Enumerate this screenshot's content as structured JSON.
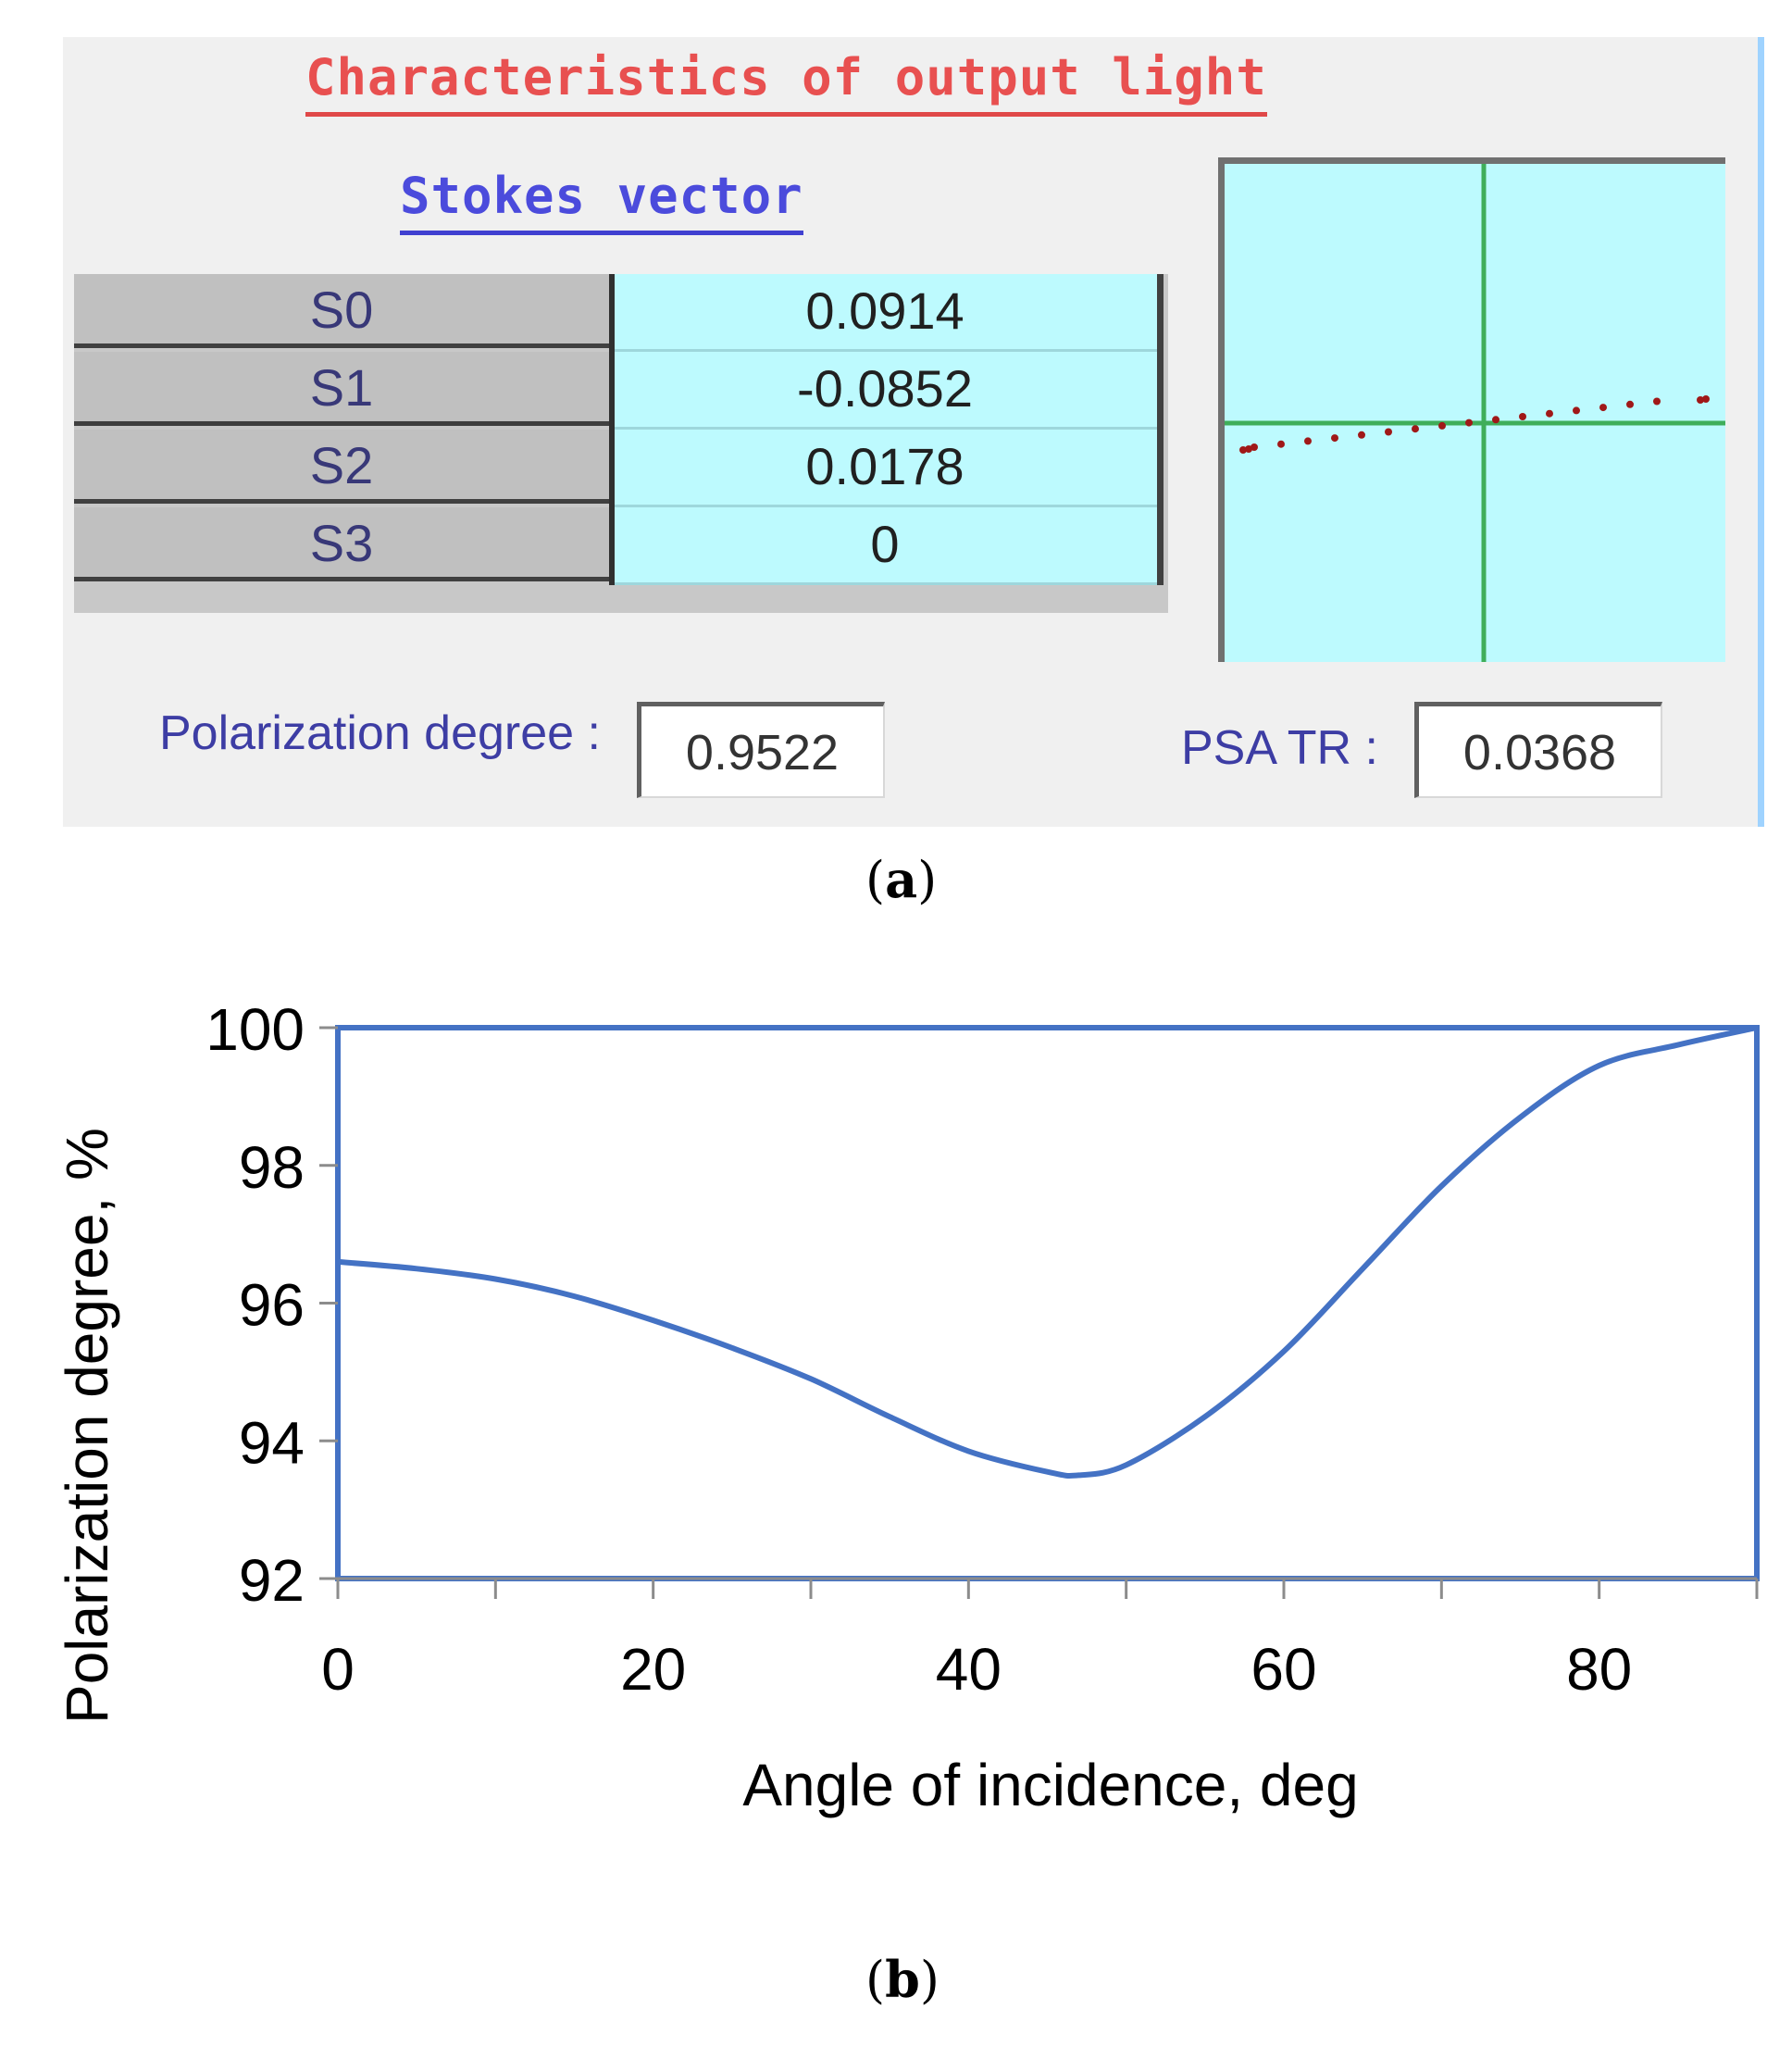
{
  "panel_a": {
    "title": "Characteristics of output light",
    "subtitle": "Stokes vector",
    "stokes_rows": [
      {
        "label": "S0",
        "value": "0.0914"
      },
      {
        "label": "S1",
        "value": "-0.0852"
      },
      {
        "label": "S2",
        "value": "0.0178"
      },
      {
        "label": "S3",
        "value": "0"
      }
    ],
    "polarization_label": "Polarization degree :",
    "polarization_value": "0.9522",
    "psa_label": "PSA TR :",
    "psa_value": "0.0368",
    "caption_letter": "a",
    "colors": {
      "scope_axis": "#3fae5a",
      "scope_points": "#a01818",
      "scope_bg": "#bdfafe"
    }
  },
  "chart_data": {
    "type": "line",
    "title": "",
    "xlabel": "Angle of incidence, deg",
    "ylabel": "Polarization degree, %",
    "xlim": [
      0,
      90
    ],
    "ylim": [
      92,
      100
    ],
    "x_ticks": [
      "0",
      "20",
      "40",
      "60",
      "80"
    ],
    "y_ticks": [
      "100",
      "98",
      "96",
      "94",
      "92"
    ],
    "series": [
      {
        "name": "Polarization degree",
        "color": "#4472c4",
        "x": [
          0,
          5,
          10,
          15,
          20,
          25,
          30,
          35,
          40,
          45,
          47,
          50,
          55,
          60,
          65,
          70,
          75,
          80,
          85,
          90
        ],
        "values": [
          96.6,
          96.5,
          96.35,
          96.1,
          95.75,
          95.35,
          94.9,
          94.35,
          93.85,
          93.55,
          93.5,
          93.65,
          94.35,
          95.3,
          96.5,
          97.7,
          98.7,
          99.45,
          99.75,
          100
        ]
      }
    ],
    "caption_letter": "b"
  }
}
